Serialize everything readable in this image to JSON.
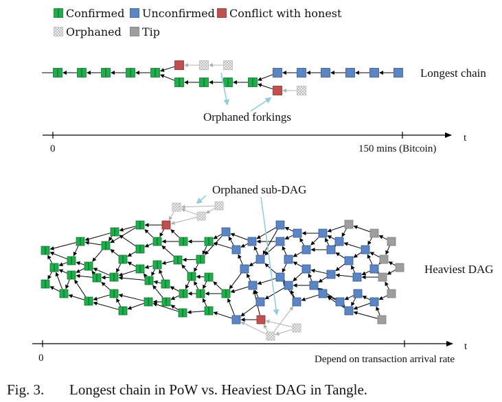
{
  "legend": {
    "confirmed": "Confirmed",
    "unconfirmed": "Unconfirmed",
    "conflict": "Conflict with honest",
    "orphaned": "Orphaned",
    "tip": "Tip"
  },
  "colors": {
    "confirmed": "#1fae4b",
    "unconfirmed": "#5b87c9",
    "conflict": "#c0504d",
    "orphaned": "#d9d9d9",
    "tip": "#9e9e9e",
    "annotation_arrow": "#92cddc"
  },
  "top": {
    "label": "Longest chain",
    "annotation": "Orphaned forkings",
    "axis_start": "0",
    "axis_end": "150 mins (Bitcoin)",
    "axis_var": "t"
  },
  "bottom": {
    "label": "Heaviest DAG",
    "annotation": "Orphaned sub-DAG",
    "axis_start": "0",
    "axis_end": "Depend on transaction arrival rate",
    "axis_var": "t"
  },
  "caption": {
    "number": "Fig. 3.",
    "text": "Longest chain in PoW vs. Heaviest DAG in Tangle."
  }
}
